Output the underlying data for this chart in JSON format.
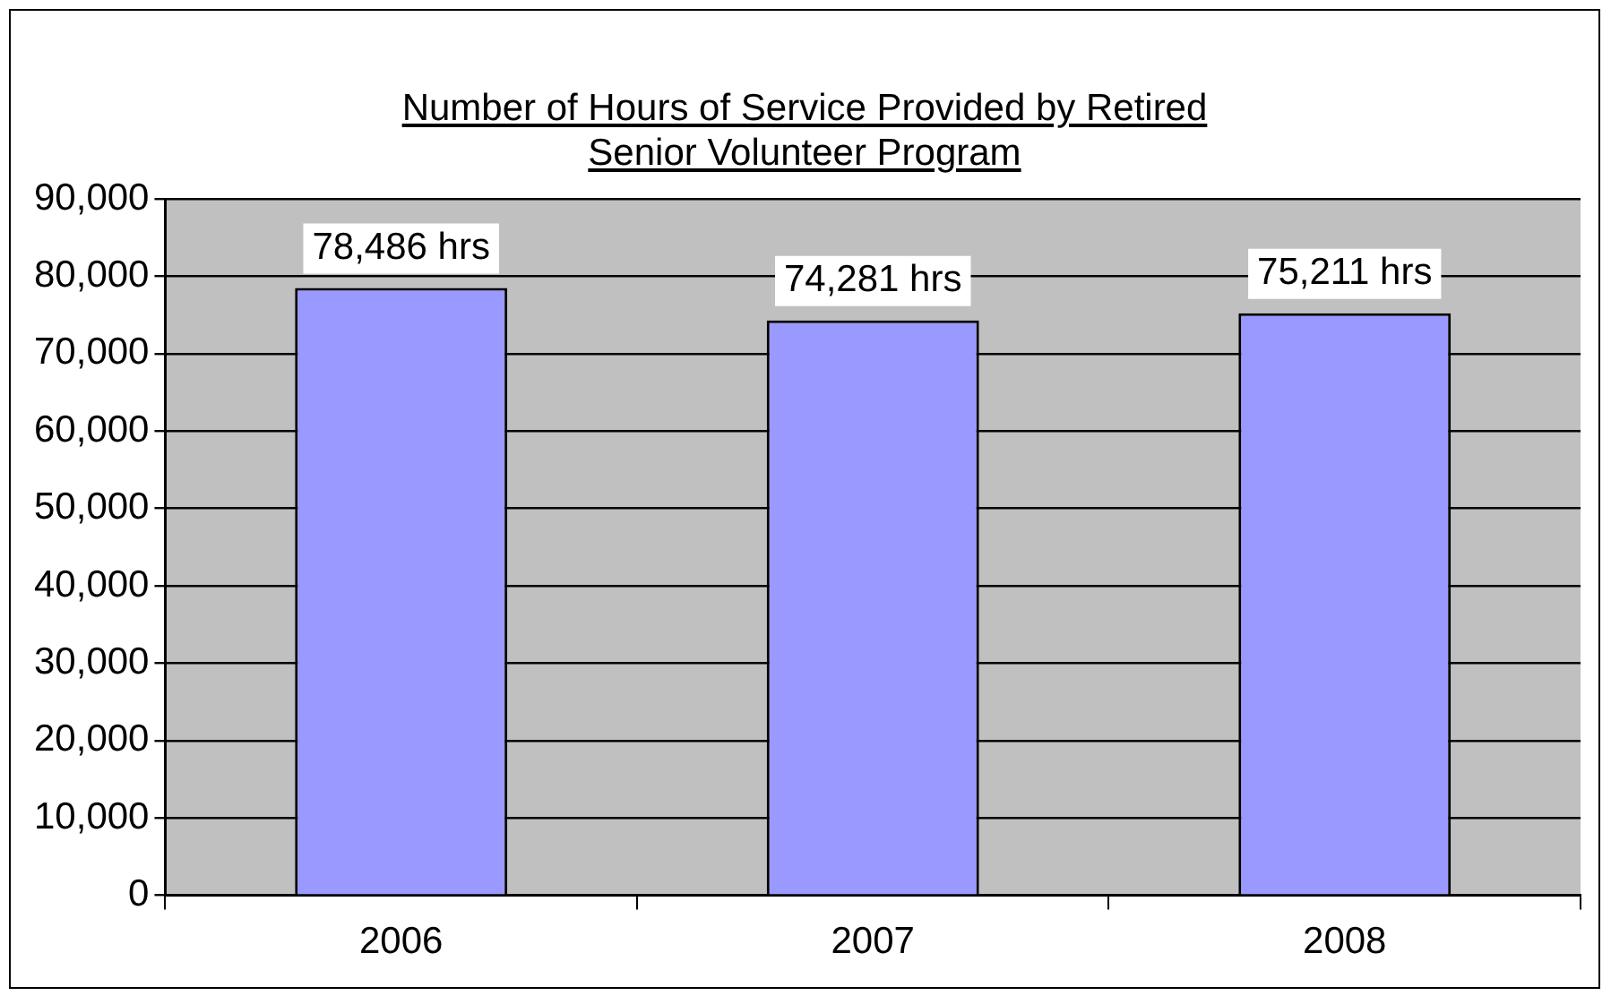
{
  "chart_data": {
    "type": "bar",
    "title": "Number of Hours of Service Provided by Retired Senior Volunteer Program",
    "categories": [
      "2006",
      "2007",
      "2008"
    ],
    "values": [
      78486,
      74281,
      75211
    ],
    "value_labels": [
      "78,486 hrs",
      "74,281 hrs",
      "75,211 hrs"
    ],
    "color": "#9999ff",
    "ylim": [
      0,
      90000
    ],
    "yticks": [
      0,
      {
        "value": 10000,
        "label": "10,000"
      },
      {
        "value": 20000,
        "label": "20,000"
      },
      {
        "value": 30000,
        "label": "30,000"
      },
      {
        "value": 40000,
        "label": "40,000"
      },
      {
        "value": 50000,
        "label": "50,000"
      },
      {
        "value": 60000,
        "label": "60,000"
      },
      {
        "value": 70000,
        "label": "70,000"
      },
      {
        "value": 80000,
        "label": "80,000"
      },
      {
        "value": 90000,
        "label": "90,000"
      }
    ],
    "grid": "y",
    "legend": false
  }
}
